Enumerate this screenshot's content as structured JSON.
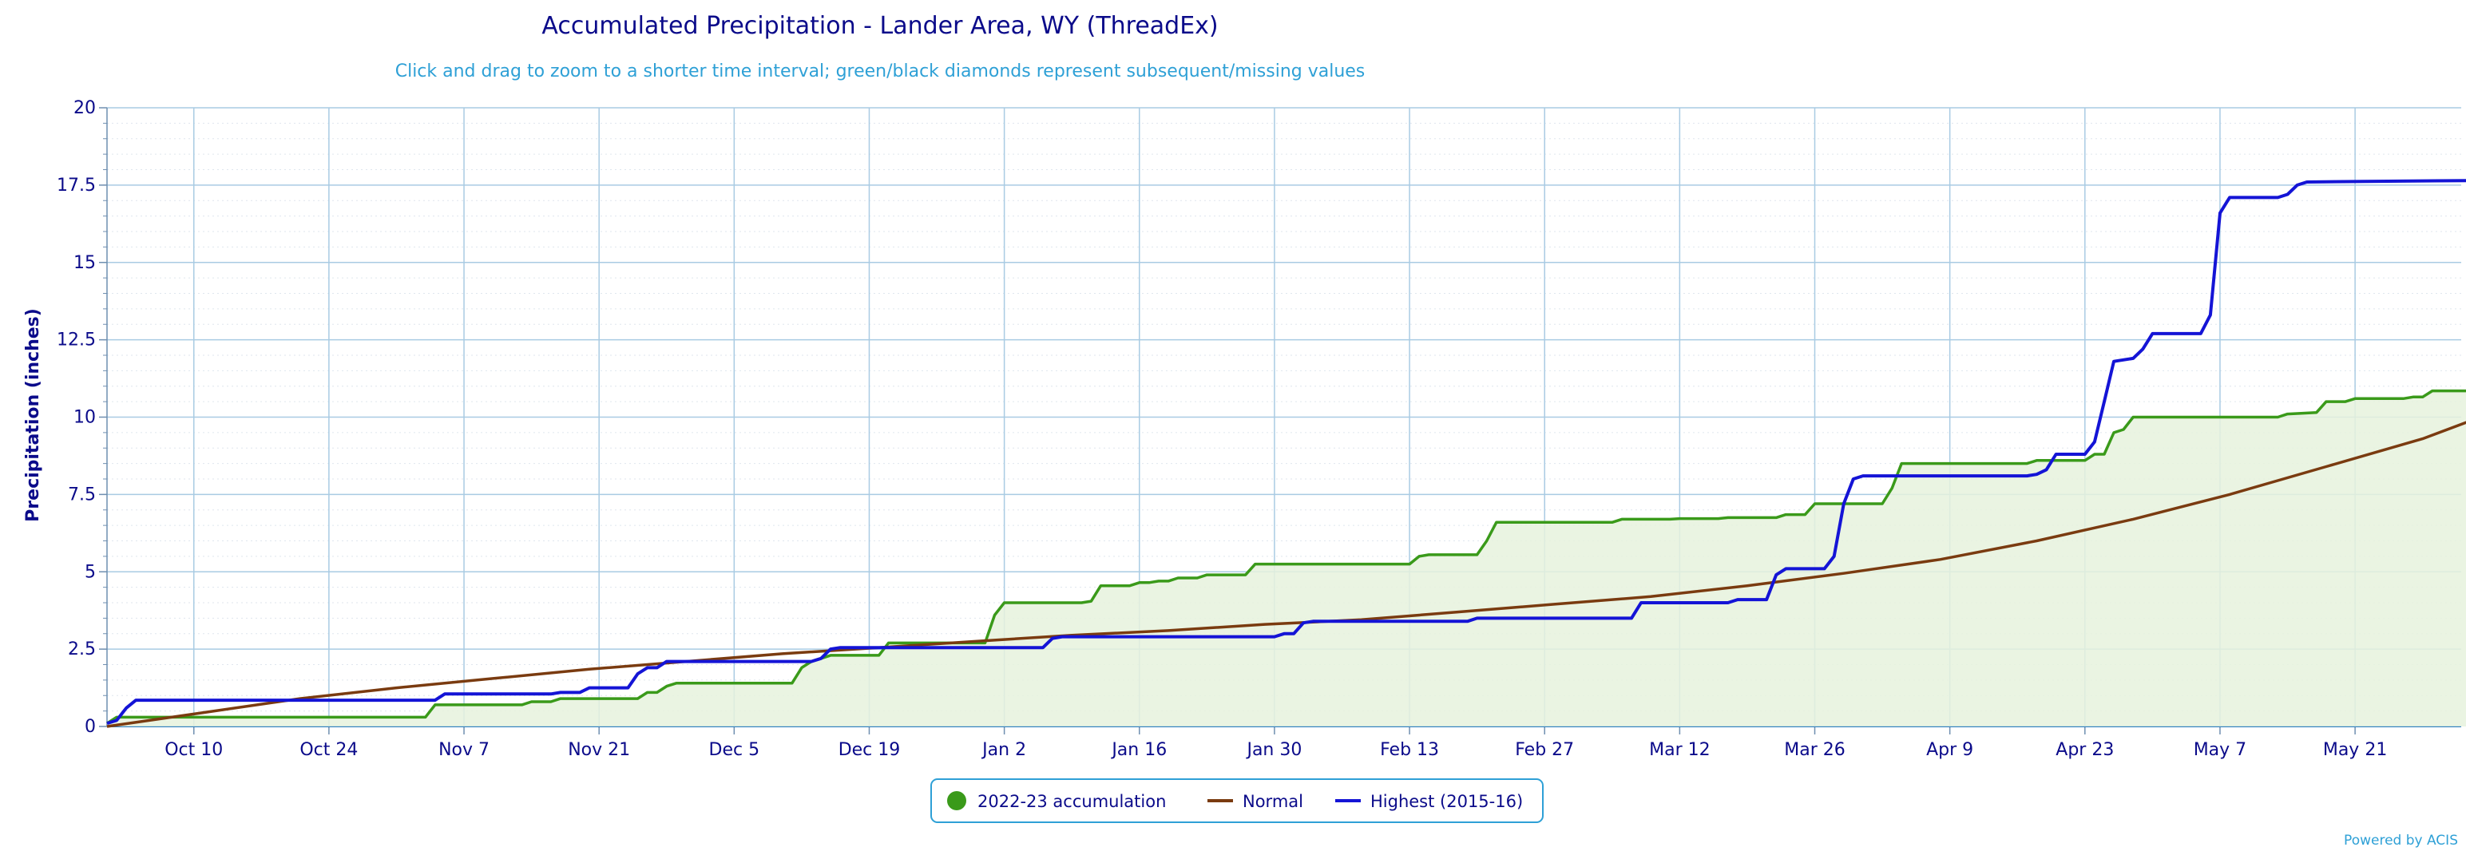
{
  "chart_data": {
    "type": "line",
    "title": "Accumulated Precipitation - Lander Area, WY (ThreadEx)",
    "subtitle": "Click and drag to zoom to a shorter time interval; green/black diamonds represent subsequent/missing values",
    "ylabel": "Precipitation (inches)",
    "xlabel": "",
    "ylim": [
      0,
      20
    ],
    "y_ticks": [
      "0",
      "2.5",
      "5",
      "7.5",
      "10",
      "12.5",
      "15",
      "17.5",
      "20"
    ],
    "y_tick_values": [
      0,
      2.5,
      5,
      7.5,
      10,
      12.5,
      15,
      17.5,
      20
    ],
    "x_ticks": [
      "Oct 10",
      "Oct 24",
      "Nov 7",
      "Nov 21",
      "Dec 5",
      "Dec 19",
      "Jan 2",
      "Jan 16",
      "Jan 30",
      "Feb 13",
      "Feb 27",
      "Mar 12",
      "Mar 26",
      "Apr 9",
      "Apr 23",
      "May 7",
      "May 21"
    ],
    "x_tick_days": [
      9,
      23,
      37,
      51,
      65,
      79,
      93,
      107,
      121,
      135,
      149,
      163,
      177,
      191,
      205,
      219,
      233
    ],
    "x_range_days": [
      0,
      244
    ],
    "x_note": "x values are days since Oct 1 of the season",
    "grid": true,
    "legend_position": "bottom-center",
    "series": [
      {
        "name": "2022-23 accumulation",
        "color": "#3a9a1a",
        "fill": true,
        "points": [
          [
            0,
            0.1
          ],
          [
            1,
            0.3
          ],
          [
            33,
            0.3
          ],
          [
            34,
            0.7
          ],
          [
            43,
            0.7
          ],
          [
            44,
            0.8
          ],
          [
            46,
            0.8
          ],
          [
            47,
            0.9
          ],
          [
            55,
            0.9
          ],
          [
            56,
            1.1
          ],
          [
            57,
            1.1
          ],
          [
            58,
            1.3
          ],
          [
            59,
            1.4
          ],
          [
            71,
            1.4
          ],
          [
            72,
            1.9
          ],
          [
            73,
            2.1
          ],
          [
            74,
            2.2
          ],
          [
            75,
            2.3
          ],
          [
            80,
            2.3
          ],
          [
            81,
            2.7
          ],
          [
            91,
            2.7
          ],
          [
            92,
            3.6
          ],
          [
            93,
            4.0
          ],
          [
            101,
            4.0
          ],
          [
            102,
            4.05
          ],
          [
            103,
            4.55
          ],
          [
            106,
            4.55
          ],
          [
            107,
            4.65
          ],
          [
            108,
            4.65
          ],
          [
            109,
            4.7
          ],
          [
            110,
            4.7
          ],
          [
            111,
            4.8
          ],
          [
            113,
            4.8
          ],
          [
            114,
            4.9
          ],
          [
            118,
            4.9
          ],
          [
            119,
            5.25
          ],
          [
            135,
            5.25
          ],
          [
            136,
            5.5
          ],
          [
            137,
            5.55
          ],
          [
            142,
            5.55
          ],
          [
            143,
            6.0
          ],
          [
            144,
            6.6
          ],
          [
            156,
            6.6
          ],
          [
            157,
            6.7
          ],
          [
            162,
            6.7
          ],
          [
            163,
            6.72
          ],
          [
            167,
            6.72
          ],
          [
            168,
            6.75
          ],
          [
            173,
            6.75
          ],
          [
            174,
            6.85
          ],
          [
            176,
            6.85
          ],
          [
            177,
            7.2
          ],
          [
            184,
            7.2
          ],
          [
            185,
            7.7
          ],
          [
            186,
            8.5
          ],
          [
            199,
            8.5
          ],
          [
            200,
            8.6
          ],
          [
            205,
            8.6
          ],
          [
            206,
            8.8
          ],
          [
            207,
            8.8
          ],
          [
            208,
            9.5
          ],
          [
            209,
            9.6
          ],
          [
            210,
            10.0
          ],
          [
            225,
            10.0
          ],
          [
            226,
            10.1
          ],
          [
            229,
            10.15
          ],
          [
            230,
            10.5
          ],
          [
            232,
            10.5
          ],
          [
            233,
            10.6
          ],
          [
            238,
            10.6
          ],
          [
            239,
            10.65
          ],
          [
            240,
            10.65
          ],
          [
            241,
            10.85
          ],
          [
            246,
            10.85
          ],
          [
            247,
            11.2
          ]
        ]
      },
      {
        "name": "Normal",
        "color": "#7a3b10",
        "fill": false,
        "points": [
          [
            0,
            0.0
          ],
          [
            10,
            0.45
          ],
          [
            20,
            0.9
          ],
          [
            30,
            1.25
          ],
          [
            40,
            1.55
          ],
          [
            50,
            1.85
          ],
          [
            60,
            2.1
          ],
          [
            70,
            2.35
          ],
          [
            80,
            2.55
          ],
          [
            90,
            2.75
          ],
          [
            100,
            2.95
          ],
          [
            110,
            3.1
          ],
          [
            120,
            3.3
          ],
          [
            130,
            3.45
          ],
          [
            140,
            3.7
          ],
          [
            150,
            3.95
          ],
          [
            160,
            4.2
          ],
          [
            170,
            4.55
          ],
          [
            180,
            4.95
          ],
          [
            190,
            5.4
          ],
          [
            200,
            6.0
          ],
          [
            210,
            6.7
          ],
          [
            220,
            7.5
          ],
          [
            230,
            8.4
          ],
          [
            240,
            9.3
          ],
          [
            246,
            10.0
          ]
        ]
      },
      {
        "name": "Highest (2015-16)",
        "color": "#1414d6",
        "fill": false,
        "points": [
          [
            0,
            0.1
          ],
          [
            1,
            0.2
          ],
          [
            2,
            0.6
          ],
          [
            3,
            0.85
          ],
          [
            34,
            0.85
          ],
          [
            35,
            1.05
          ],
          [
            46,
            1.05
          ],
          [
            47,
            1.1
          ],
          [
            49,
            1.1
          ],
          [
            50,
            1.25
          ],
          [
            54,
            1.25
          ],
          [
            55,
            1.7
          ],
          [
            56,
            1.9
          ],
          [
            57,
            1.9
          ],
          [
            58,
            2.1
          ],
          [
            73,
            2.1
          ],
          [
            74,
            2.2
          ],
          [
            75,
            2.5
          ],
          [
            76,
            2.55
          ],
          [
            97,
            2.55
          ],
          [
            98,
            2.85
          ],
          [
            99,
            2.9
          ],
          [
            121,
            2.9
          ],
          [
            122,
            3.0
          ],
          [
            123,
            3.0
          ],
          [
            124,
            3.35
          ],
          [
            125,
            3.4
          ],
          [
            141,
            3.4
          ],
          [
            142,
            3.5
          ],
          [
            158,
            3.5
          ],
          [
            159,
            4.0
          ],
          [
            168,
            4.0
          ],
          [
            169,
            4.1
          ],
          [
            172,
            4.1
          ],
          [
            173,
            4.9
          ],
          [
            174,
            5.1
          ],
          [
            178,
            5.1
          ],
          [
            179,
            5.5
          ],
          [
            180,
            7.2
          ],
          [
            181,
            8.0
          ],
          [
            182,
            8.1
          ],
          [
            199,
            8.1
          ],
          [
            200,
            8.15
          ],
          [
            201,
            8.3
          ],
          [
            202,
            8.8
          ],
          [
            205,
            8.8
          ],
          [
            206,
            9.2
          ],
          [
            207,
            10.5
          ],
          [
            208,
            11.8
          ],
          [
            210,
            11.9
          ],
          [
            211,
            12.2
          ],
          [
            212,
            12.7
          ],
          [
            217,
            12.7
          ],
          [
            218,
            13.3
          ],
          [
            219,
            16.6
          ],
          [
            220,
            17.1
          ],
          [
            225,
            17.1
          ],
          [
            226,
            17.2
          ],
          [
            227,
            17.5
          ],
          [
            228,
            17.6
          ],
          [
            234,
            17.62
          ],
          [
            246,
            17.65
          ]
        ]
      }
    ],
    "credit": "Powered by ACIS"
  }
}
